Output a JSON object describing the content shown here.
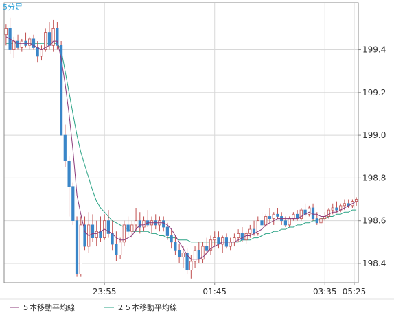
{
  "chart_data": {
    "type": "candlestick",
    "timeframe_label": "5分足",
    "ylim": [
      198.31,
      199.62
    ],
    "y_ticks": [
      "199.4",
      "199.2",
      "199.0",
      "198.8",
      "198.6",
      "198.4"
    ],
    "x_ticks": [
      "23:55",
      "01:45",
      "03:35",
      "05:25"
    ],
    "grid": true,
    "colors": {
      "up_body": "#ffffff",
      "up_border": "#c05050",
      "down_body": "#3a86c8",
      "wick": "#c05050",
      "ma5": "#8b3a7a",
      "ma25": "#2aa385",
      "grid": "#d8d8d8",
      "axis": "#888888"
    },
    "legend": [
      {
        "label": "５本移動平均線",
        "color": "#8b3a7a"
      },
      {
        "label": "２５本移動平均線",
        "color": "#2aa385"
      }
    ],
    "candles": [
      [
        199.47,
        199.52,
        199.42,
        199.5
      ],
      [
        199.5,
        199.55,
        199.38,
        199.4
      ],
      [
        199.4,
        199.46,
        199.36,
        199.44
      ],
      [
        199.44,
        199.47,
        199.4,
        199.41
      ],
      [
        199.41,
        199.45,
        199.39,
        199.44
      ],
      [
        199.44,
        199.48,
        199.41,
        199.42
      ],
      [
        199.42,
        199.46,
        199.4,
        199.45
      ],
      [
        199.45,
        199.47,
        199.4,
        199.41
      ],
      [
        199.41,
        199.44,
        199.34,
        199.37
      ],
      [
        199.37,
        199.42,
        199.35,
        199.4
      ],
      [
        199.4,
        199.5,
        199.39,
        199.48
      ],
      [
        199.48,
        199.53,
        199.4,
        199.42
      ],
      [
        199.42,
        199.54,
        199.39,
        199.5
      ],
      [
        199.5,
        199.53,
        199.4,
        199.42
      ],
      [
        199.42,
        199.44,
        199.0,
        199.0
      ],
      [
        199.0,
        199.05,
        198.85,
        198.88
      ],
      [
        198.88,
        198.9,
        198.62,
        198.76
      ],
      [
        198.76,
        198.78,
        198.58,
        198.6
      ],
      [
        198.6,
        198.62,
        198.34,
        198.35
      ],
      [
        198.35,
        198.62,
        198.34,
        198.58
      ],
      [
        198.58,
        198.62,
        198.46,
        198.48
      ],
      [
        198.48,
        198.64,
        198.45,
        198.58
      ],
      [
        198.58,
        198.63,
        198.5,
        198.52
      ],
      [
        198.52,
        198.6,
        198.48,
        198.55
      ],
      [
        198.55,
        198.62,
        198.5,
        198.52
      ],
      [
        198.52,
        198.63,
        198.51,
        198.6
      ],
      [
        198.6,
        198.65,
        198.52,
        198.54
      ],
      [
        198.54,
        198.6,
        198.46,
        198.49
      ],
      [
        198.49,
        198.55,
        198.41,
        198.44
      ],
      [
        198.44,
        198.52,
        198.42,
        198.5
      ],
      [
        198.5,
        198.6,
        198.48,
        198.58
      ],
      [
        198.58,
        198.62,
        198.53,
        198.55
      ],
      [
        198.55,
        198.6,
        198.52,
        198.58
      ],
      [
        198.58,
        198.66,
        198.55,
        198.6
      ],
      [
        198.6,
        198.64,
        198.54,
        198.57
      ],
      [
        198.57,
        198.62,
        198.55,
        198.6
      ],
      [
        198.6,
        198.65,
        198.57,
        198.58
      ],
      [
        198.58,
        198.62,
        198.54,
        198.6
      ],
      [
        198.6,
        198.63,
        198.56,
        198.58
      ],
      [
        198.58,
        198.62,
        198.55,
        198.6
      ],
      [
        198.6,
        198.62,
        198.55,
        198.57
      ],
      [
        198.57,
        198.59,
        198.51,
        198.53
      ],
      [
        198.53,
        198.56,
        198.47,
        198.5
      ],
      [
        198.5,
        198.53,
        198.44,
        198.46
      ],
      [
        198.46,
        198.49,
        198.4,
        198.43
      ],
      [
        198.43,
        198.48,
        198.38,
        198.45
      ],
      [
        198.45,
        198.47,
        198.35,
        198.37
      ],
      [
        198.37,
        198.44,
        198.33,
        198.41
      ],
      [
        198.41,
        198.48,
        198.38,
        198.46
      ],
      [
        198.46,
        198.5,
        198.4,
        198.42
      ],
      [
        198.42,
        198.5,
        198.4,
        198.48
      ],
      [
        198.48,
        198.52,
        198.44,
        198.46
      ],
      [
        198.46,
        198.53,
        198.44,
        198.51
      ],
      [
        198.51,
        198.55,
        198.48,
        198.52
      ],
      [
        198.52,
        198.55,
        198.47,
        198.49
      ],
      [
        198.49,
        198.53,
        198.45,
        198.52
      ],
      [
        198.52,
        198.54,
        198.47,
        198.48
      ],
      [
        198.48,
        198.52,
        198.46,
        198.5
      ],
      [
        198.5,
        198.54,
        198.48,
        198.52
      ],
      [
        198.52,
        198.56,
        198.5,
        198.54
      ],
      [
        198.54,
        198.57,
        198.5,
        198.51
      ],
      [
        198.51,
        198.55,
        198.49,
        198.54
      ],
      [
        198.54,
        198.58,
        198.52,
        198.56
      ],
      [
        198.56,
        198.6,
        198.53,
        198.54
      ],
      [
        198.54,
        198.62,
        198.53,
        198.6
      ],
      [
        198.6,
        198.64,
        198.56,
        198.58
      ],
      [
        198.58,
        198.63,
        198.57,
        198.62
      ],
      [
        198.62,
        198.66,
        198.59,
        198.61
      ],
      [
        198.61,
        198.64,
        198.58,
        198.63
      ],
      [
        198.63,
        198.66,
        198.61,
        198.62
      ],
      [
        198.62,
        198.64,
        198.58,
        198.6
      ],
      [
        198.6,
        198.62,
        198.57,
        198.58
      ],
      [
        198.58,
        198.62,
        198.57,
        198.61
      ],
      [
        198.61,
        198.64,
        198.6,
        198.63
      ],
      [
        198.63,
        198.65,
        198.6,
        198.61
      ],
      [
        198.61,
        198.66,
        198.6,
        198.65
      ],
      [
        198.65,
        198.68,
        198.62,
        198.63
      ],
      [
        198.63,
        198.67,
        198.62,
        198.66
      ],
      [
        198.66,
        198.68,
        198.6,
        198.61
      ],
      [
        198.61,
        198.64,
        198.58,
        198.59
      ],
      [
        198.59,
        198.62,
        198.58,
        198.61
      ],
      [
        198.61,
        198.64,
        198.6,
        198.62
      ],
      [
        198.62,
        198.66,
        198.61,
        198.65
      ],
      [
        198.65,
        198.68,
        198.63,
        198.66
      ],
      [
        198.66,
        198.69,
        198.64,
        198.65
      ],
      [
        198.65,
        198.68,
        198.64,
        198.67
      ],
      [
        198.67,
        198.7,
        198.65,
        198.68
      ],
      [
        198.68,
        198.7,
        198.66,
        198.67
      ],
      [
        198.67,
        198.7,
        198.66,
        198.69
      ],
      [
        198.69,
        198.71,
        198.67,
        198.7
      ]
    ],
    "ma5": [
      [
        199.46,
        199.45,
        199.44,
        199.43,
        199.43,
        199.43,
        199.43,
        199.42,
        199.41,
        199.4,
        199.41,
        199.42,
        199.44,
        199.44,
        199.36,
        199.24,
        199.1,
        198.93,
        198.72,
        198.63,
        198.55,
        198.53,
        198.54,
        198.54,
        198.55,
        198.56,
        198.55,
        198.54,
        198.52,
        198.51,
        198.51,
        198.52,
        198.53,
        198.56,
        198.58,
        198.58,
        198.59,
        198.59,
        198.59,
        198.59,
        198.59,
        198.58,
        198.56,
        198.53,
        198.5,
        198.47,
        198.44,
        198.42,
        198.42,
        198.42,
        198.43,
        198.45,
        198.47,
        198.48,
        198.49,
        198.5,
        198.5,
        198.5,
        198.5,
        198.51,
        198.52,
        198.53,
        198.53,
        198.54,
        198.55,
        198.56,
        198.58,
        198.59,
        198.6,
        198.61,
        198.61,
        198.61,
        198.61,
        198.61,
        198.61,
        198.62,
        198.63,
        198.64,
        198.63,
        198.63,
        198.62,
        198.62,
        198.63,
        198.64,
        198.64,
        198.65,
        198.66,
        198.67,
        198.68,
        198.69
      ]
    ],
    "ma25": [
      [
        199.43,
        199.43,
        199.43,
        199.43,
        199.43,
        199.43,
        199.43,
        199.43,
        199.43,
        199.43,
        199.43,
        199.43,
        199.43,
        199.43,
        199.4,
        199.3,
        199.2,
        199.1,
        199.0,
        198.92,
        198.86,
        198.8,
        198.74,
        198.69,
        198.66,
        198.64,
        198.62,
        198.6,
        198.59,
        198.58,
        198.57,
        198.56,
        198.55,
        198.55,
        198.55,
        198.55,
        198.55,
        198.54,
        198.54,
        198.53,
        198.53,
        198.52,
        198.52,
        198.52,
        198.51,
        198.51,
        198.51,
        198.5,
        198.5,
        198.5,
        198.5,
        198.5,
        198.5,
        198.5,
        198.5,
        198.5,
        198.5,
        198.5,
        198.5,
        198.5,
        198.51,
        198.51,
        198.51,
        198.52,
        198.52,
        198.53,
        198.54,
        198.54,
        198.55,
        198.55,
        198.56,
        198.56,
        198.57,
        198.57,
        198.58,
        198.58,
        198.59,
        198.59,
        198.6,
        198.6,
        198.61,
        198.61,
        198.62,
        198.62,
        198.63,
        198.63,
        198.64,
        198.64,
        198.65,
        198.65
      ]
    ]
  }
}
